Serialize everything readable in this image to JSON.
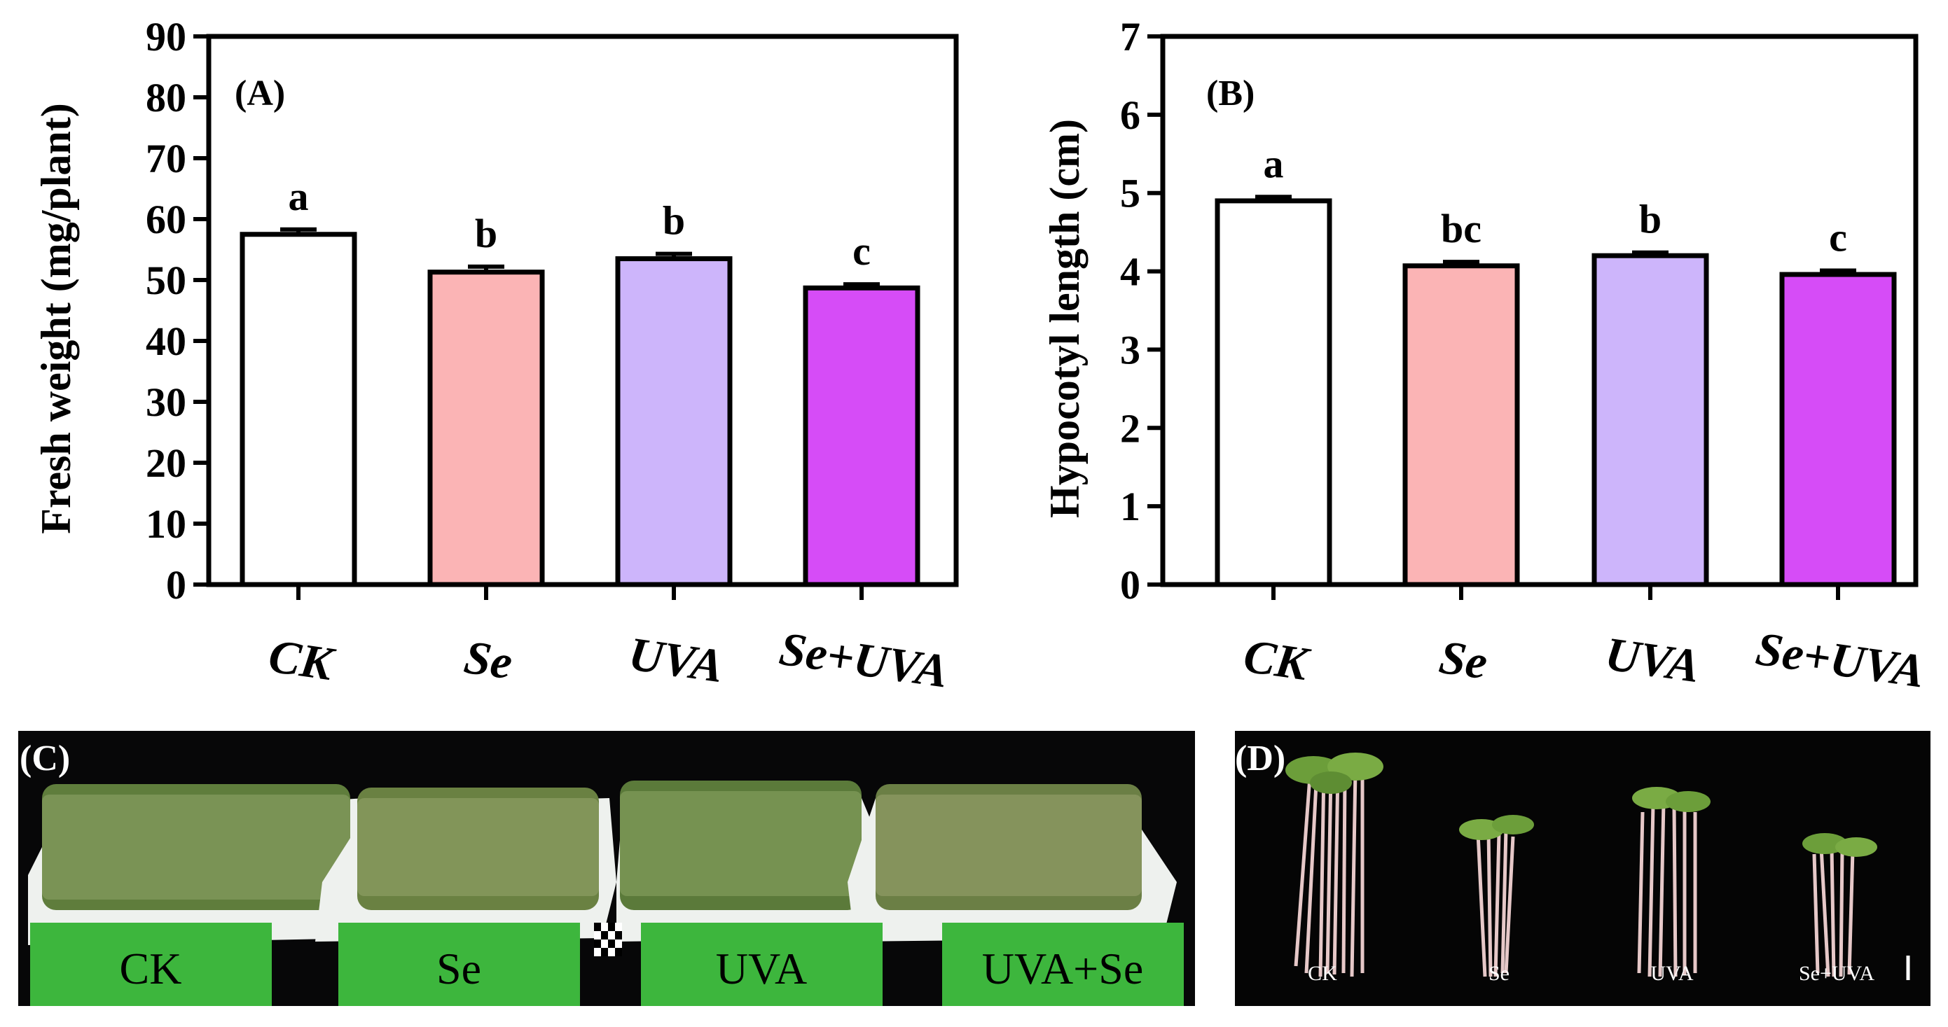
{
  "chart_data": [
    {
      "panel": "(A)",
      "type": "bar",
      "ylabel": "Fresh weight (mg/plant)",
      "categories": [
        "CK",
        "Se",
        "UVA",
        "Se+UVA"
      ],
      "values": [
        57.5,
        51.3,
        53.5,
        48.7
      ],
      "errors": [
        0.8,
        0.9,
        0.8,
        0.6
      ],
      "letters": [
        "a",
        "b",
        "b",
        "c"
      ],
      "colors": [
        "#ffffff",
        "#fbb4b5",
        "#cdb5fb",
        "#d64cf7"
      ],
      "ylim": [
        0,
        90
      ],
      "yticks": [
        0,
        10,
        20,
        30,
        40,
        50,
        60,
        70,
        80,
        90
      ]
    },
    {
      "panel": "(B)",
      "type": "bar",
      "ylabel": "Hypocotyl length (cm)",
      "categories": [
        "CK",
        "Se",
        "UVA",
        "Se+UVA"
      ],
      "values": [
        4.9,
        4.07,
        4.2,
        3.96
      ],
      "errors": [
        0.05,
        0.05,
        0.04,
        0.05
      ],
      "letters": [
        "a",
        "bc",
        "b",
        "c"
      ],
      "colors": [
        "#ffffff",
        "#fbb4b5",
        "#cdb5fb",
        "#d64cf7"
      ],
      "ylim": [
        0,
        7
      ],
      "yticks": [
        0,
        1,
        2,
        3,
        4,
        5,
        6,
        7
      ]
    }
  ],
  "photo_c": {
    "panel": "(C)",
    "labels": [
      "CK",
      "Se",
      "UVA",
      "UVA+Se"
    ]
  },
  "photo_d": {
    "panel": "(D)",
    "labels": [
      "CK",
      "Se",
      "UVA",
      "Se+UVA"
    ]
  }
}
